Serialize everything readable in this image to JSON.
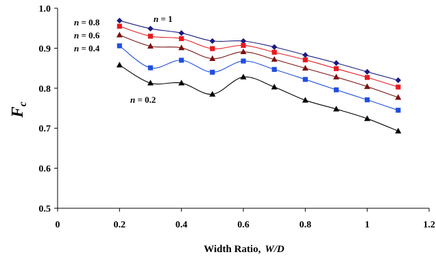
{
  "chart_data": {
    "type": "line",
    "title": "",
    "xlabel": "Width Ratio,",
    "xlabel_var": "W/D",
    "ylabel": "F",
    "ylabel_sub": "c",
    "xlim": [
      0,
      1.2
    ],
    "ylim": [
      0.5,
      1.0
    ],
    "xticks": [
      0,
      0.2,
      0.4,
      0.6,
      0.8,
      1,
      1.2
    ],
    "yticks": [
      0.5,
      0.6,
      0.7,
      0.8,
      0.9,
      1.0
    ],
    "xtick_labels": [
      "0",
      "0.2",
      "0.4",
      "0.6",
      "0.8",
      "1",
      "1.2"
    ],
    "ytick_labels": [
      "0.5",
      "0.6",
      "0.7",
      "0.8",
      "0.9",
      "1.0"
    ],
    "grid": false,
    "legend": "none",
    "x": [
      0.2,
      0.3,
      0.4,
      0.5,
      0.6,
      0.7,
      0.8,
      0.9,
      1.0,
      1.1
    ],
    "series": [
      {
        "name": "n = 1",
        "color": "#1a1a80",
        "marker": "diamond",
        "values": [
          0.969,
          0.949,
          0.938,
          0.918,
          0.918,
          0.903,
          0.883,
          0.863,
          0.841,
          0.82
        ]
      },
      {
        "name": "n = 0.8",
        "color": "#e8191e",
        "marker": "square",
        "values": [
          0.955,
          0.93,
          0.924,
          0.899,
          0.907,
          0.89,
          0.871,
          0.849,
          0.827,
          0.803
        ]
      },
      {
        "name": "n = 0.6",
        "color": "#7b1010",
        "marker": "triangle",
        "values": [
          0.933,
          0.905,
          0.901,
          0.874,
          0.891,
          0.872,
          0.85,
          0.828,
          0.804,
          0.777
        ]
      },
      {
        "name": "n = 0.4",
        "color": "#1f4fe0",
        "marker": "square",
        "values": [
          0.906,
          0.851,
          0.87,
          0.84,
          0.868,
          0.847,
          0.822,
          0.796,
          0.771,
          0.745
        ]
      },
      {
        "name": "n = 0.2",
        "color": "#000000",
        "marker": "triangle",
        "values": [
          0.858,
          0.813,
          0.813,
          0.785,
          0.828,
          0.803,
          0.77,
          0.748,
          0.724,
          0.693
        ]
      }
    ],
    "annotations": [
      {
        "label": "n = 1",
        "var": "n",
        "rest": " = 1"
      },
      {
        "label": "n = 0.8",
        "var": "n",
        "rest": " = 0.8"
      },
      {
        "label": "n = 0.6",
        "var": "n",
        "rest": " = 0.6"
      },
      {
        "label": "n = 0.4",
        "var": "n",
        "rest": " = 0.4"
      },
      {
        "label": "n = 0.2",
        "var": "n",
        "rest": " = 0.2"
      }
    ]
  }
}
